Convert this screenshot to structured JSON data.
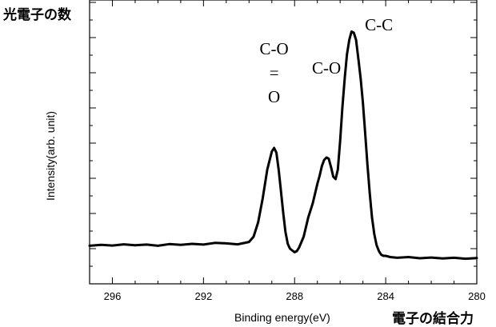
{
  "chart_data": {
    "type": "line",
    "corner_label_y": "光電子の数",
    "corner_label_x": "電子の結合力",
    "xlabel": "Binding energy(eV)",
    "ylabel": "Intensity(arb. unit)",
    "xlim": [
      297,
      280
    ],
    "x_reversed": true,
    "y_tick_labels": false,
    "xticks": [
      {
        "value": 296,
        "label": "296"
      },
      {
        "value": 292,
        "label": "292"
      },
      {
        "value": 288,
        "label": "288"
      },
      {
        "value": 284,
        "label": "284"
      },
      {
        "value": 280,
        "label": "280"
      }
    ],
    "ylim": [
      0,
      100
    ],
    "annotations": [
      {
        "text": "C-O",
        "x": 288.9,
        "y": 90
      },
      {
        "text": "=",
        "x": 288.9,
        "y": 80
      },
      {
        "text": "O",
        "x": 288.9,
        "y": 70
      },
      {
        "text": "C-O",
        "x": 286.6,
        "y": 82
      },
      {
        "text": "C-C",
        "x": 284.3,
        "y": 100
      }
    ],
    "series": [
      {
        "values_x": [
          297.0,
          296.5,
          296.0,
          295.5,
          295.0,
          294.5,
          294.0,
          293.5,
          293.0,
          292.5,
          292.0,
          291.5,
          291.0,
          290.5,
          290.0,
          289.8,
          289.6,
          289.4,
          289.2,
          289.0,
          288.9,
          288.8,
          288.7,
          288.6,
          288.5,
          288.4,
          288.3,
          288.2,
          288.0,
          287.9,
          287.8,
          287.6,
          287.4,
          287.2,
          287.0,
          286.9,
          286.8,
          286.7,
          286.6,
          286.5,
          286.4,
          286.3,
          286.2,
          286.1,
          286.0,
          285.9,
          285.8,
          285.7,
          285.6,
          285.5,
          285.4,
          285.3,
          285.2,
          285.1,
          285.0,
          284.9,
          284.8,
          284.7,
          284.6,
          284.5,
          284.4,
          284.3,
          284.2,
          284.1,
          284.0,
          283.8,
          283.5,
          283.0,
          282.5,
          282.0,
          281.5,
          281.0,
          280.5,
          280.0
        ],
        "values": [
          10.2,
          10.6,
          10.3,
          10.8,
          10.4,
          10.7,
          10.2,
          10.9,
          10.6,
          11.0,
          10.7,
          11.4,
          11.2,
          10.8,
          11.8,
          14.0,
          20.0,
          30.0,
          42.0,
          49.5,
          51.0,
          49.0,
          42.0,
          33.0,
          24.0,
          16.0,
          11.0,
          9.0,
          7.5,
          8.0,
          9.5,
          14.0,
          22.0,
          28.0,
          36.0,
          39.5,
          43.5,
          46.0,
          47.0,
          46.5,
          43.0,
          39.0,
          38.0,
          42.0,
          54.0,
          68.0,
          80.0,
          90.0,
          96.0,
          99.5,
          99.0,
          96.0,
          88.0,
          80.0,
          70.0,
          57.0,
          44.0,
          32.0,
          22.0,
          15.0,
          10.5,
          8.0,
          6.5,
          6.0,
          6.0,
          5.5,
          5.2,
          5.5,
          5.0,
          5.3,
          4.9,
          5.2,
          4.8,
          5.1
        ]
      }
    ]
  }
}
